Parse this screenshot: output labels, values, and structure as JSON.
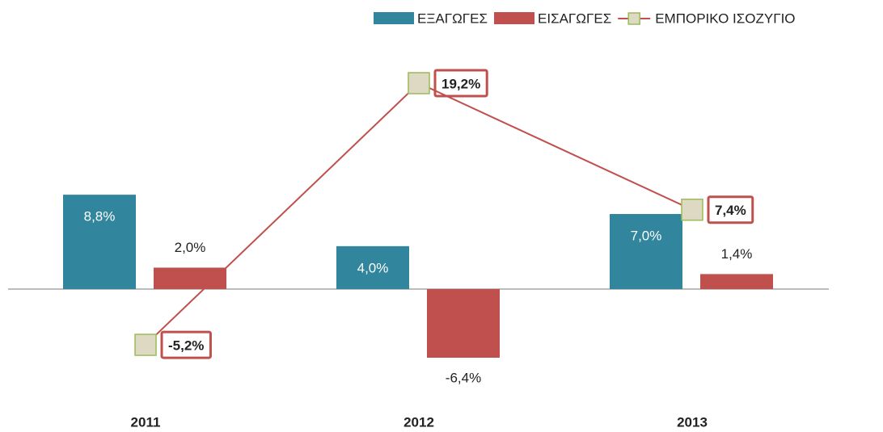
{
  "chart_data": {
    "type": "bar",
    "categories": [
      "2011",
      "2012",
      "2013"
    ],
    "series": [
      {
        "name": "ΕΞΑΓΩΓΕΣ",
        "type": "bar",
        "color": "#31859c",
        "values": [
          8.8,
          4.0,
          7.0
        ],
        "value_labels": [
          "8,8%",
          "4,0%",
          "7,0%"
        ]
      },
      {
        "name": "ΕΙΣΑΓΩΓΕΣ",
        "type": "bar",
        "color": "#c0504d",
        "values": [
          2.0,
          -6.4,
          1.4
        ],
        "value_labels": [
          "2,0%",
          "-6,4%",
          "1,4%"
        ]
      },
      {
        "name": "ΕΜΠΟΡΙΚΟ ΙΣΟΖΥΓΙΟ",
        "type": "line",
        "color": "#c0504d",
        "marker_color": "#ddd9c3",
        "marker_edge": "#9bbb59",
        "values": [
          -5.2,
          19.2,
          7.4
        ],
        "value_labels": [
          "-5,2%",
          "19,2%",
          "7,4%"
        ]
      }
    ],
    "legend": "top-right"
  }
}
